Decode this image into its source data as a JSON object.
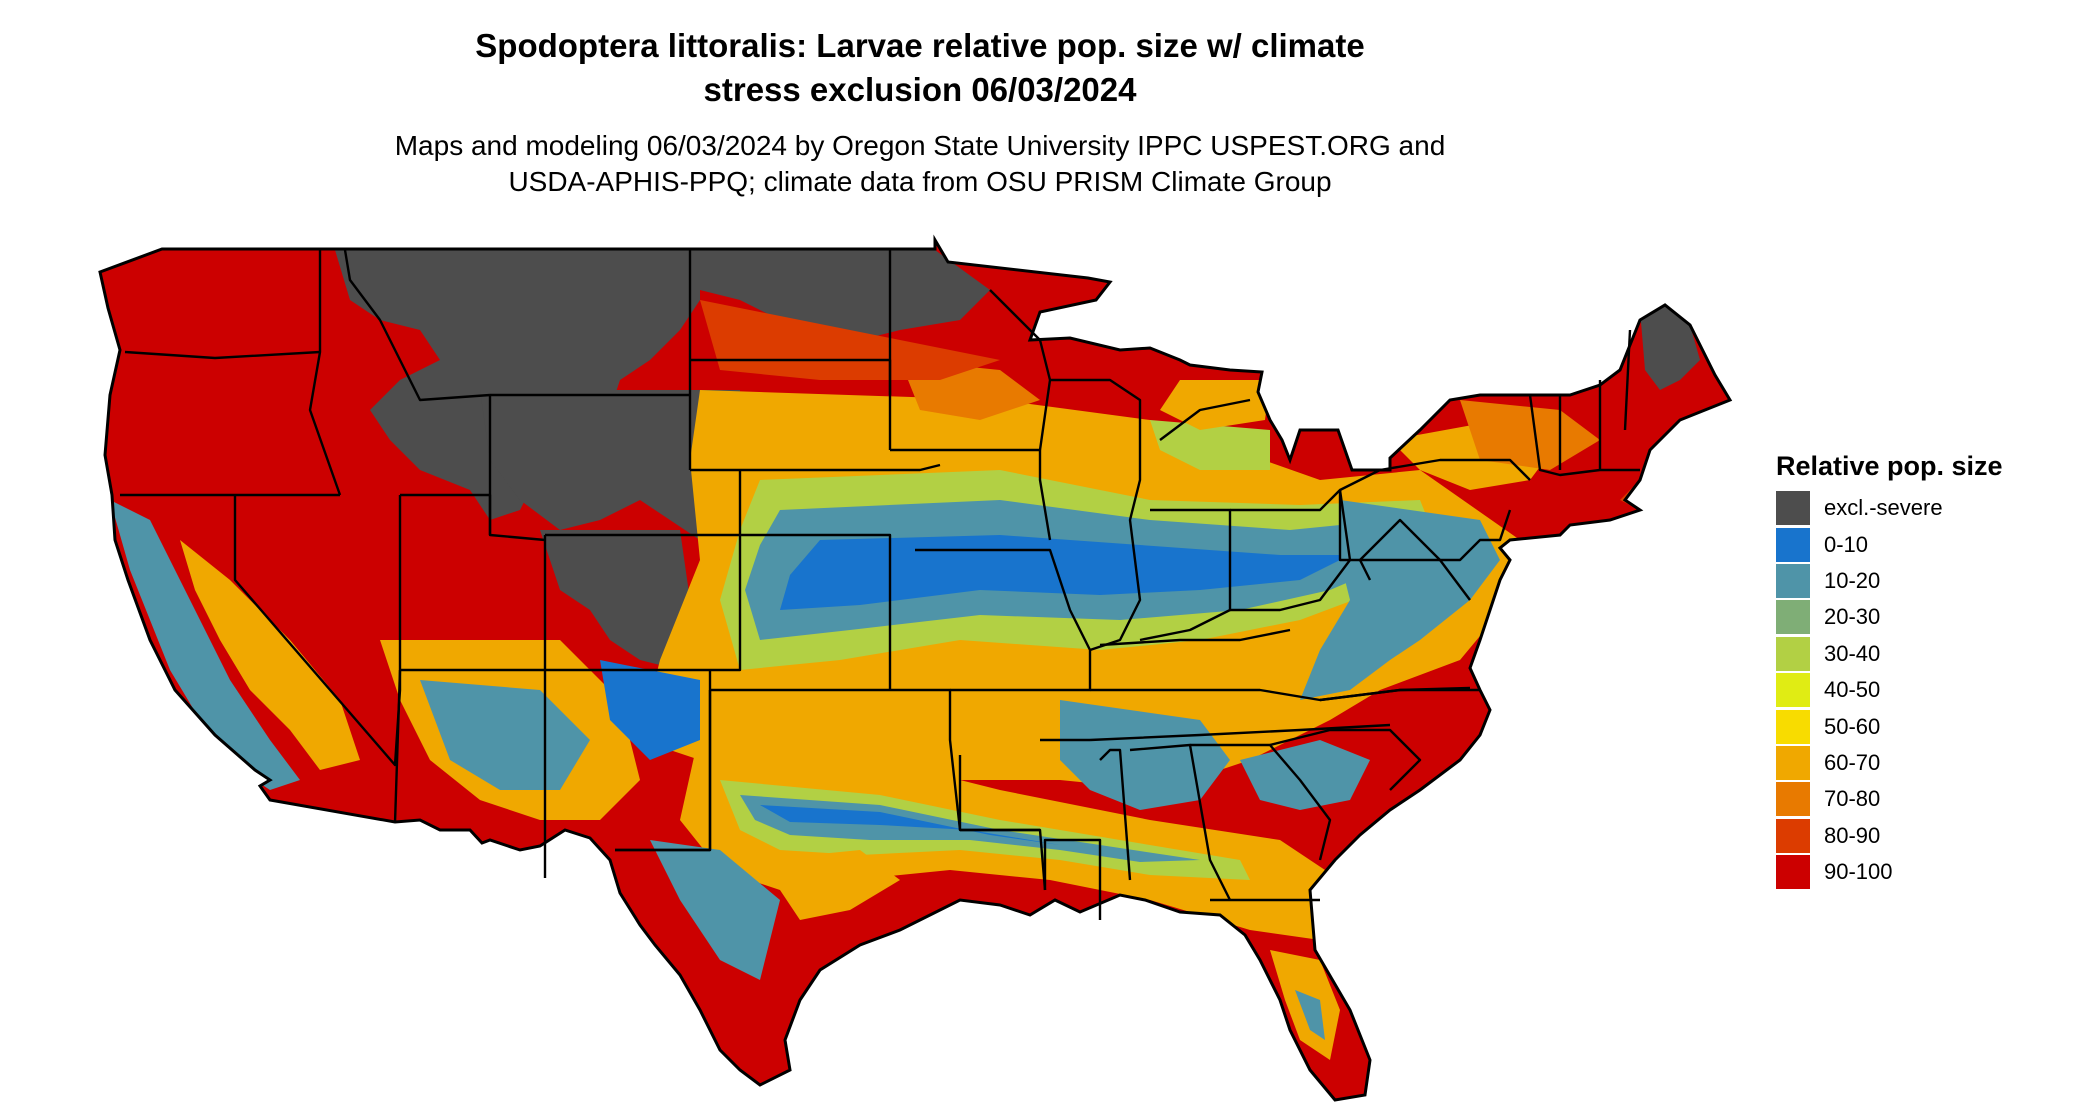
{
  "title": {
    "line1": "Spodoptera littoralis: Larvae relative pop. size w/ climate",
    "line2": "stress exclusion 06/03/2024"
  },
  "subtitle": {
    "line1": "Maps and modeling 06/03/2024 by Oregon State University IPPC USPEST.ORG and",
    "line2": "USDA-APHIS-PPQ; climate data from OSU PRISM Climate Group"
  },
  "legend": {
    "title": "Relative pop. size",
    "items": [
      {
        "label": "excl.-severe",
        "color": "#4d4d4d"
      },
      {
        "label": "0-10",
        "color": "#1874cd"
      },
      {
        "label": "10-20",
        "color": "#4f94a8"
      },
      {
        "label": "20-30",
        "color": "#7fae76"
      },
      {
        "label": "30-40",
        "color": "#b2d044"
      },
      {
        "label": "40-50",
        "color": "#e0ec14"
      },
      {
        "label": "50-60",
        "color": "#f8dc00"
      },
      {
        "label": "60-70",
        "color": "#f0a800"
      },
      {
        "label": "70-80",
        "color": "#e87a00"
      },
      {
        "label": "80-90",
        "color": "#dc3c00"
      },
      {
        "label": "90-100",
        "color": "#cc0000"
      }
    ]
  }
}
